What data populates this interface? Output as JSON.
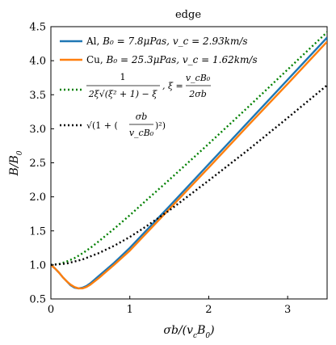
{
  "chart_data": {
    "type": "line",
    "title": "edge",
    "xlabel": "σb/(v_cB_0)",
    "ylabel": "B/B_0",
    "xlim": [
      0,
      3.5
    ],
    "ylim": [
      0.5,
      4.5
    ],
    "xticks": [
      0,
      1,
      2,
      3
    ],
    "yticks": [
      0.5,
      1.0,
      1.5,
      2.0,
      2.5,
      3.0,
      3.5,
      4.0,
      4.5
    ],
    "xtick_labels": [
      "0",
      "1",
      "2",
      "3"
    ],
    "ytick_labels": [
      "0.5",
      "1.0",
      "1.5",
      "2.0",
      "2.5",
      "3.0",
      "3.5",
      "4.0",
      "4.5"
    ],
    "grid": false,
    "legend_position": "top-left",
    "series": [
      {
        "name": "Al, B0=7.8μPas, vc=2.93km/s",
        "color": "#1f77b4",
        "style": "solid",
        "x": [
          0,
          0.05,
          0.1,
          0.15,
          0.2,
          0.25,
          0.3,
          0.35,
          0.4,
          0.45,
          0.5,
          0.6,
          0.8,
          1.0,
          1.5,
          2.0,
          2.5,
          3.0,
          3.5
        ],
        "y": [
          1.0,
          0.95,
          0.89,
          0.82,
          0.76,
          0.7,
          0.665,
          0.655,
          0.665,
          0.69,
          0.73,
          0.83,
          1.03,
          1.25,
          1.86,
          2.48,
          3.1,
          3.72,
          4.34
        ]
      },
      {
        "name": "Cu, B0=25.3μPas, vc=1.62km/s",
        "color": "#ff7f0e",
        "style": "solid",
        "x": [
          0,
          0.05,
          0.1,
          0.15,
          0.2,
          0.25,
          0.3,
          0.35,
          0.4,
          0.45,
          0.5,
          0.6,
          0.8,
          1.0,
          1.5,
          2.0,
          2.5,
          3.0,
          3.5
        ],
        "y": [
          1.0,
          0.95,
          0.89,
          0.82,
          0.76,
          0.71,
          0.675,
          0.655,
          0.655,
          0.675,
          0.71,
          0.8,
          1.0,
          1.21,
          1.82,
          2.43,
          3.05,
          3.66,
          4.28
        ]
      },
      {
        "name": "1/(2ξ√(ξ²+1)−ξ), ξ = v_cB_0/(2σb)",
        "color": "#008000",
        "style": "dotted",
        "x": [
          0,
          0.1,
          0.2,
          0.3,
          0.4,
          0.5,
          0.6,
          0.8,
          1.0,
          1.2,
          1.5,
          2.0,
          2.5,
          3.0,
          3.5
        ],
        "y": [
          1.0,
          1.01,
          1.05,
          1.1,
          1.17,
          1.25,
          1.34,
          1.53,
          1.73,
          1.94,
          2.25,
          2.78,
          3.32,
          3.87,
          4.42
        ]
      },
      {
        "name": "√(1+(σb/(v_cB_0))²)",
        "color": "#000000",
        "style": "dotted",
        "x": [
          0,
          0.2,
          0.4,
          0.6,
          0.8,
          1.0,
          1.2,
          1.5,
          2.0,
          2.5,
          3.0,
          3.5
        ],
        "y": [
          1.0,
          1.02,
          1.08,
          1.17,
          1.28,
          1.41,
          1.56,
          1.8,
          2.24,
          2.69,
          3.16,
          3.64
        ]
      }
    ]
  },
  "legend": {
    "al": "Al, ",
    "al_params": "B₀ = 7.8μPas, v_c = 2.93km/s",
    "cu": "Cu, ",
    "cu_params": "B₀ = 25.3μPas, v_c = 1.62km/s",
    "eq1_num": "1",
    "eq1_den": "2ξ√(ξ² + 1) − ξ",
    "eq1_xi": ", ξ =",
    "eq1_xi_num": "v_cB₀",
    "eq1_xi_den": "2σb",
    "eq2_open": "√(1 + (",
    "eq2_num": "σb",
    "eq2_den": "v_cB₀",
    "eq2_close": ")²)"
  }
}
